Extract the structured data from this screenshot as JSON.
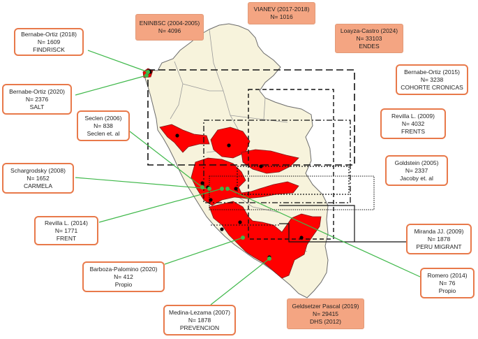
{
  "studies": {
    "eninbsc": {
      "title": "ENINBSC (2004-2005)",
      "n": "N= 4096"
    },
    "vianev": {
      "title": "VIANEV (2017-2018)",
      "n": "N= 1016"
    },
    "loayza": {
      "title": "Loayza-Castro (2024)",
      "n": "N= 33103",
      "method": "ENDES"
    },
    "bernabe2018": {
      "title": "Bernabe-Ortiz (2018)",
      "n": "N= 1609",
      "method": "FINDRISCK"
    },
    "bernabe2020": {
      "title": "Bernabe-Ortiz (2020)",
      "n": "N= 2376",
      "method": "SALT"
    },
    "bernabe2015": {
      "title": "Bernabe-Ortiz (2015)",
      "n": "N= 3238",
      "method": "COHORTE CRONICAS"
    },
    "seclen": {
      "title": "Seclen (2006)",
      "n": "N= 838",
      "method": "Seclen et. al"
    },
    "revilla2009": {
      "title": "Revilla L. (2009)",
      "n": "N= 4032",
      "method": "FRENTS"
    },
    "goldstein": {
      "title": "Goldstein (2005)",
      "n": "N= 2337",
      "method": "Jacoby et. al"
    },
    "schargrodsky": {
      "title": "Schargrodsky (2008)",
      "n": "N= 1652",
      "method": "CARMELA"
    },
    "revilla2014": {
      "title": "Revilla L. (2014)",
      "n": "N= 1771",
      "method": "FRENT"
    },
    "miranda": {
      "title": "Miranda JJ. (2009)",
      "n": "N= 1878",
      "method": "PERU MIGRANT"
    },
    "barboza": {
      "title": "Barboza-Palomino (2020)",
      "n": "N= 412",
      "method": "Propio"
    },
    "romero": {
      "title": "Romero (2014)",
      "n": "N= 76",
      "method": "Propio"
    },
    "medina": {
      "title": "Medina-Lezama (2007)",
      "n": "N= 1878",
      "method": "PREVENCION"
    },
    "geldsetzer": {
      "title": "Geldsetzer Pascal (2019)",
      "n": "N= 29415",
      "method": "DHS (2012)"
    }
  },
  "colors": {
    "highlight_region": "#ff0000",
    "base_region": "#f7f3dc",
    "region_border": "#6b6b6b",
    "connector_line": "#3fb84a",
    "label_border": "#e8794a",
    "label_fill": "#f4a582"
  }
}
